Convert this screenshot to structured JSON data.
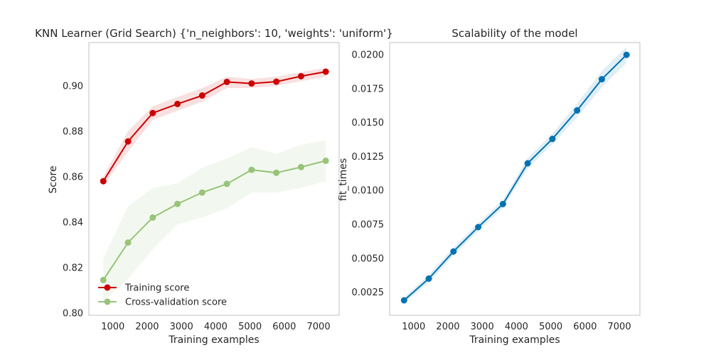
{
  "colors": {
    "train": "#cc0000",
    "cv": "#98c379",
    "time": "#0072b2",
    "frame": "#cccccc"
  },
  "chart_data": [
    {
      "type": "line",
      "title": "KNN Learner (Grid Search) {'n_neighbors': 10, 'weights': 'uniform'}",
      "xlabel": "Training examples",
      "ylabel": "Score",
      "xlim": [
        300,
        7600
      ],
      "ylim": [
        0.799,
        0.919
      ],
      "xticks": [
        1000,
        2000,
        3000,
        4000,
        5000,
        6000,
        7000
      ],
      "yticks": [
        0.8,
        0.82,
        0.84,
        0.86,
        0.88,
        0.9
      ],
      "ytick_decimals": 2,
      "grid": false,
      "legend": "lower-left",
      "x": [
        721,
        1442,
        2163,
        2884,
        3605,
        4326,
        5047,
        5768,
        6489,
        7210
      ],
      "series": [
        {
          "name": "Training score",
          "color_key": "train",
          "values": [
            0.858,
            0.8755,
            0.888,
            0.892,
            0.8957,
            0.9017,
            0.901,
            0.9018,
            0.9042,
            0.9062
          ],
          "band_lower": [
            0.856,
            0.871,
            0.885,
            0.889,
            0.893,
            0.899,
            0.899,
            0.9,
            0.902,
            0.904
          ],
          "band_upper": [
            0.86,
            0.88,
            0.891,
            0.895,
            0.899,
            0.904,
            0.903,
            0.904,
            0.906,
            0.908
          ]
        },
        {
          "name": "Cross-validation score",
          "color_key": "cv",
          "values": [
            0.8145,
            0.831,
            0.842,
            0.848,
            0.853,
            0.8568,
            0.863,
            0.8617,
            0.8642,
            0.867
          ],
          "band_lower": [
            0.805,
            0.815,
            0.828,
            0.839,
            0.842,
            0.846,
            0.853,
            0.853,
            0.855,
            0.858
          ],
          "band_upper": [
            0.824,
            0.847,
            0.855,
            0.857,
            0.864,
            0.868,
            0.873,
            0.87,
            0.874,
            0.876
          ]
        }
      ]
    },
    {
      "type": "line",
      "title": "Scalability of the model",
      "xlabel": "Training examples",
      "ylabel": "fit_times",
      "xlim": [
        300,
        7600
      ],
      "ylim": [
        0.0008,
        0.0209
      ],
      "xticks": [
        1000,
        2000,
        3000,
        4000,
        5000,
        6000,
        7000
      ],
      "yticks": [
        0.0025,
        0.005,
        0.0075,
        0.01,
        0.0125,
        0.015,
        0.0175,
        0.02
      ],
      "ytick_decimals": 4,
      "grid": false,
      "legend": "none",
      "x": [
        721,
        1442,
        2163,
        2884,
        3605,
        4326,
        5047,
        5768,
        6489,
        7210
      ],
      "series": [
        {
          "name": "",
          "color_key": "time",
          "values": [
            0.0019,
            0.0035,
            0.0055,
            0.0073,
            0.009,
            0.012,
            0.0138,
            0.0159,
            0.0182,
            0.02
          ],
          "band_lower": [
            0.0017,
            0.0032,
            0.0052,
            0.007,
            0.0087,
            0.0116,
            0.0134,
            0.0154,
            0.0176,
            0.0194
          ],
          "band_upper": [
            0.0021,
            0.0038,
            0.0058,
            0.0076,
            0.0093,
            0.0124,
            0.0142,
            0.0164,
            0.0188,
            0.0206
          ]
        }
      ]
    }
  ]
}
